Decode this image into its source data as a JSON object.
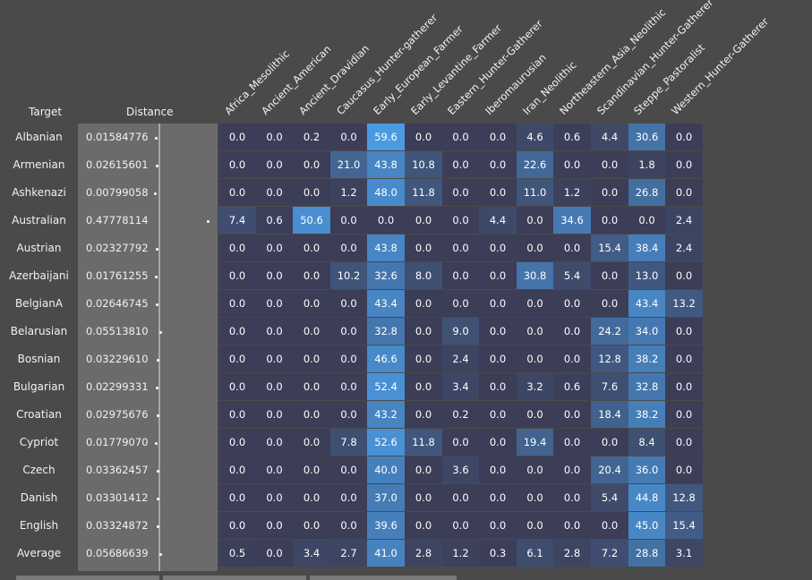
{
  "header": {
    "target_label": "Target",
    "distance_label": "Distance"
  },
  "columns": [
    "Africa_Mesolithic",
    "Ancient_American",
    "Ancient_Dravidian",
    "Caucasus_Hunter-gatherer",
    "Early_European_Farmer",
    "Early_Levantine_Farmer",
    "Eastern_Hunter-Gatherer",
    "Iberomaurusian",
    "Iran_Neolithic",
    "Northeastern_Asia_Neolithic",
    "Scandinavian_Hunter-Gatherer",
    "Steppe_Pastoralist",
    "Western_Hunter-Gatherer"
  ],
  "rows": [
    {
      "target": "Albanian",
      "distance": "0.01584776",
      "bar": 0.033,
      "values": [
        "0.0",
        "0.0",
        "0.2",
        "0.0",
        "59.6",
        "0.0",
        "0.0",
        "0.0",
        "4.6",
        "0.6",
        "4.4",
        "30.6",
        "0.0"
      ]
    },
    {
      "target": "Armenian",
      "distance": "0.02615601",
      "bar": 0.055,
      "values": [
        "0.0",
        "0.0",
        "0.0",
        "21.0",
        "43.8",
        "10.8",
        "0.0",
        "0.0",
        "22.6",
        "0.0",
        "0.0",
        "1.8",
        "0.0"
      ]
    },
    {
      "target": "Ashkenazi",
      "distance": "0.00799058",
      "bar": 0.017,
      "values": [
        "0.0",
        "0.0",
        "0.0",
        "1.2",
        "48.0",
        "11.8",
        "0.0",
        "0.0",
        "11.0",
        "1.2",
        "0.0",
        "26.8",
        "0.0"
      ]
    },
    {
      "target": "Australian",
      "distance": "0.47778114",
      "bar": 1.0,
      "values": [
        "7.4",
        "0.6",
        "50.6",
        "0.0",
        "0.0",
        "0.0",
        "0.0",
        "4.4",
        "0.0",
        "34.6",
        "0.0",
        "0.0",
        "2.4"
      ]
    },
    {
      "target": "Austrian",
      "distance": "0.02327792",
      "bar": 0.049,
      "values": [
        "0.0",
        "0.0",
        "0.0",
        "0.0",
        "43.8",
        "0.0",
        "0.0",
        "0.0",
        "0.0",
        "0.0",
        "15.4",
        "38.4",
        "2.4"
      ]
    },
    {
      "target": "Azerbaijani",
      "distance": "0.01761255",
      "bar": 0.037,
      "values": [
        "0.0",
        "0.0",
        "0.0",
        "10.2",
        "32.6",
        "8.0",
        "0.0",
        "0.0",
        "30.8",
        "5.4",
        "0.0",
        "13.0",
        "0.0"
      ]
    },
    {
      "target": "BelgianA",
      "distance": "0.02646745",
      "bar": 0.055,
      "values": [
        "0.0",
        "0.0",
        "0.0",
        "0.0",
        "43.4",
        "0.0",
        "0.0",
        "0.0",
        "0.0",
        "0.0",
        "0.0",
        "43.4",
        "13.2"
      ]
    },
    {
      "target": "Belarusian",
      "distance": "0.05513810",
      "bar": 0.115,
      "values": [
        "0.0",
        "0.0",
        "0.0",
        "0.0",
        "32.8",
        "0.0",
        "9.0",
        "0.0",
        "0.0",
        "0.0",
        "24.2",
        "34.0",
        "0.0"
      ]
    },
    {
      "target": "Bosnian",
      "distance": "0.03229610",
      "bar": 0.068,
      "values": [
        "0.0",
        "0.0",
        "0.0",
        "0.0",
        "46.6",
        "0.0",
        "2.4",
        "0.0",
        "0.0",
        "0.0",
        "12.8",
        "38.2",
        "0.0"
      ]
    },
    {
      "target": "Bulgarian",
      "distance": "0.02299331",
      "bar": 0.048,
      "values": [
        "0.0",
        "0.0",
        "0.0",
        "0.0",
        "52.4",
        "0.0",
        "3.4",
        "0.0",
        "3.2",
        "0.6",
        "7.6",
        "32.8",
        "0.0"
      ]
    },
    {
      "target": "Croatian",
      "distance": "0.02975676",
      "bar": 0.062,
      "values": [
        "0.0",
        "0.0",
        "0.0",
        "0.0",
        "43.2",
        "0.0",
        "0.2",
        "0.0",
        "0.0",
        "0.0",
        "18.4",
        "38.2",
        "0.0"
      ]
    },
    {
      "target": "Cypriot",
      "distance": "0.01779070",
      "bar": 0.037,
      "values": [
        "0.0",
        "0.0",
        "0.0",
        "7.8",
        "52.6",
        "11.8",
        "0.0",
        "0.0",
        "19.4",
        "0.0",
        "0.0",
        "8.4",
        "0.0"
      ]
    },
    {
      "target": "Czech",
      "distance": "0.03362457",
      "bar": 0.07,
      "values": [
        "0.0",
        "0.0",
        "0.0",
        "0.0",
        "40.0",
        "0.0",
        "3.6",
        "0.0",
        "0.0",
        "0.0",
        "20.4",
        "36.0",
        "0.0"
      ]
    },
    {
      "target": "Danish",
      "distance": "0.03301412",
      "bar": 0.069,
      "values": [
        "0.0",
        "0.0",
        "0.0",
        "0.0",
        "37.0",
        "0.0",
        "0.0",
        "0.0",
        "0.0",
        "0.0",
        "5.4",
        "44.8",
        "12.8"
      ]
    },
    {
      "target": "English",
      "distance": "0.03324872",
      "bar": 0.07,
      "values": [
        "0.0",
        "0.0",
        "0.0",
        "0.0",
        "39.6",
        "0.0",
        "0.0",
        "0.0",
        "0.0",
        "0.0",
        "0.0",
        "45.0",
        "15.4"
      ]
    },
    {
      "target": "Average",
      "distance": "0.05686639",
      "bar": 0.119,
      "values": [
        "0.5",
        "0.0",
        "3.4",
        "2.7",
        "41.0",
        "2.8",
        "1.2",
        "0.3",
        "6.1",
        "2.8",
        "7.2",
        "28.8",
        "3.1"
      ]
    }
  ],
  "colors": {
    "background": "#4a4a4a",
    "distance_bg": "#6b6b6b",
    "heat_low": "#3c3d56",
    "heat_high": "#4a9ae3"
  }
}
